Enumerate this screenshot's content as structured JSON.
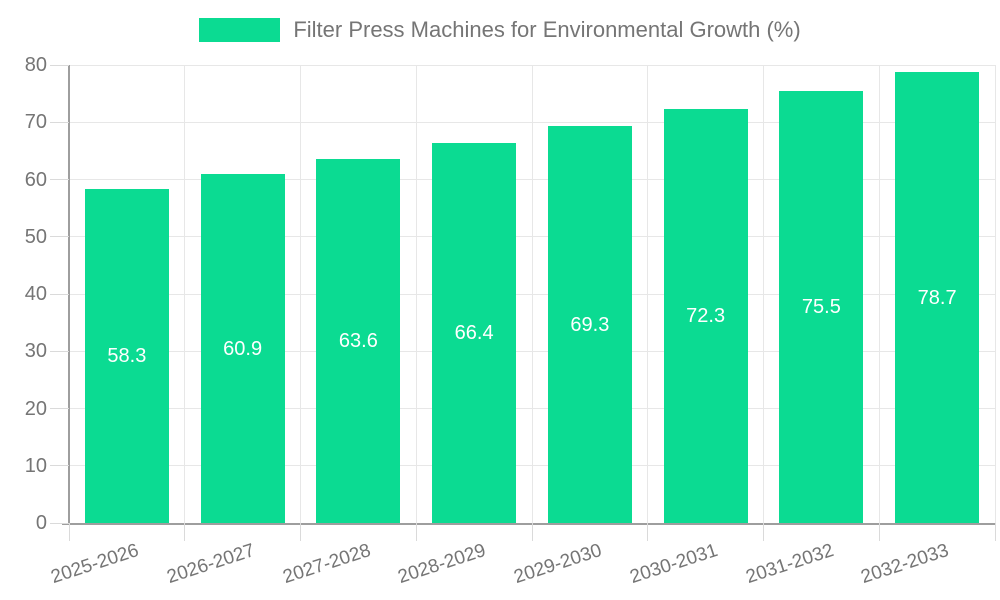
{
  "chart_data": {
    "type": "bar",
    "title": "Filter Press Machines for Environmental Growth (%)",
    "categories": [
      "2025-2026",
      "2026-2027",
      "2027-2028",
      "2028-2029",
      "2029-2030",
      "2030-2031",
      "2031-2032",
      "2032-2033"
    ],
    "values": [
      58.3,
      60.9,
      63.6,
      66.4,
      69.3,
      72.3,
      75.5,
      78.7
    ],
    "xlabel": "",
    "ylabel": "",
    "ylim": [
      0,
      80
    ],
    "yticks": [
      0,
      10,
      20,
      30,
      40,
      50,
      60,
      70,
      80
    ],
    "grid": true,
    "legend_position": "top-center",
    "value_label_position": "inside-center",
    "x_label_rotation_deg": -18,
    "colors": {
      "bar": "#0bdb92",
      "grid": "#e7e7e7",
      "tick": "#dadada",
      "axis": "#9e9e9e",
      "axis_text": "#757575",
      "value_label": "#ffffff",
      "background": "#ffffff"
    }
  }
}
